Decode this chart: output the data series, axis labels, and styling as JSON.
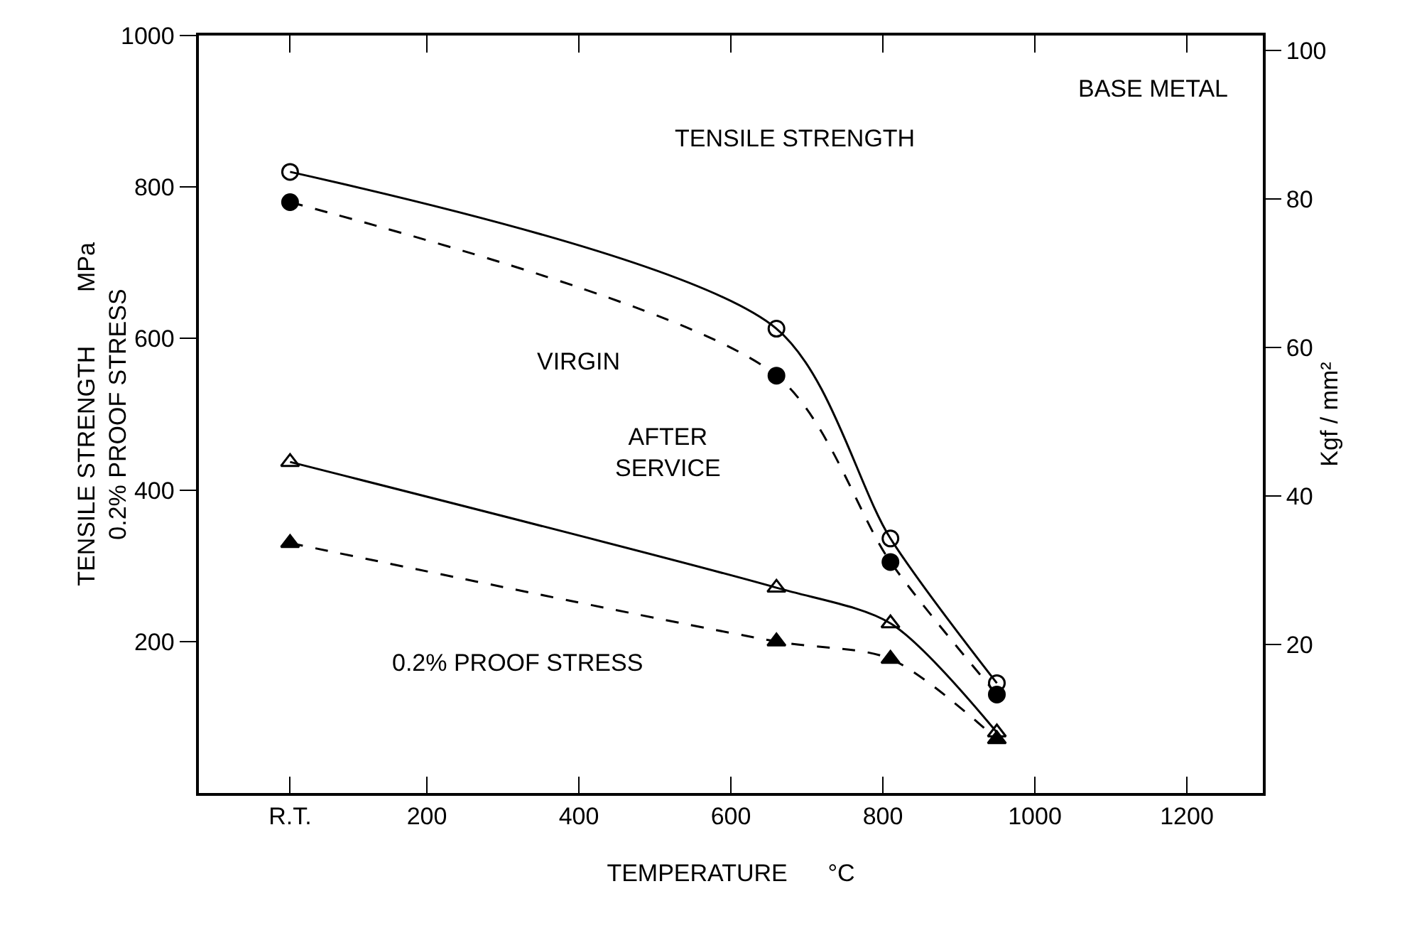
{
  "chart_data": {
    "type": "line",
    "xlabel": "TEMPERATURE      °C",
    "ylabel": "TENSILE STRENGTH        MPa\n0.2% PROOF STRESS",
    "y2label": "Kgf / mm²",
    "x": [
      20,
      660,
      810,
      950
    ],
    "series": [
      {
        "color": "#000000",
        "line_style": "solid",
        "marker": "circle",
        "values": [
          820,
          613,
          336,
          145
        ]
      },
      {
        "color": "#000000",
        "line_style": "dashed",
        "marker": "circle",
        "values": [
          780,
          551,
          305,
          130
        ]
      },
      {
        "color": "#000000",
        "line_style": "solid",
        "marker": "triangle",
        "values": [
          437,
          271,
          224,
          80
        ]
      },
      {
        "color": "#000000",
        "line_style": "dashed",
        "marker": "triangle",
        "values": [
          330,
          200,
          177,
          71
        ]
      }
    ],
    "xlim": [
      -100,
      1300
    ],
    "xticks": [
      {
        "value": 20,
        "label": "R.T."
      },
      200,
      400,
      600,
      800,
      1000,
      1200
    ],
    "ylim": [
      0,
      1000
    ],
    "yticks": [
      200,
      400,
      600,
      800,
      1000
    ],
    "y2lim": [
      0,
      102
    ],
    "y2ticks": [
      20,
      40,
      60,
      80,
      100
    ],
    "grid": false,
    "annotations": [
      "TENSILE STRENGTH",
      "VIRGIN",
      "AFTER\nSERVICE",
      "0.2% PROOF STRESS",
      "BASE METAL"
    ]
  }
}
